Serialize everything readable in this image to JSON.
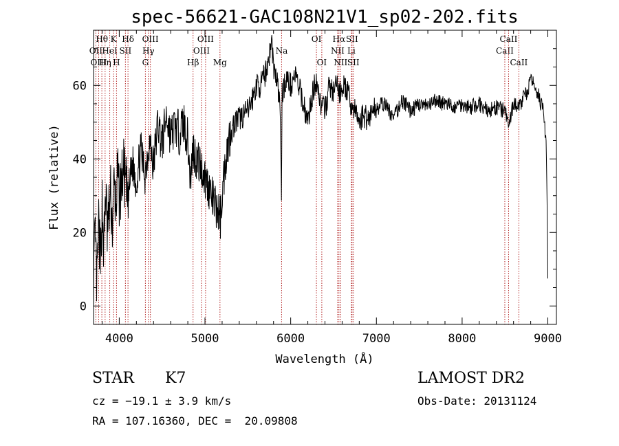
{
  "chart_data": {
    "type": "line",
    "title": "spec-56621-GAC108N21V1_sp02-202.fits",
    "xlabel": "Wavelength (Å)",
    "ylabel": "Flux (relative)",
    "xlim": [
      3700,
      9100
    ],
    "ylim": [
      -5,
      75
    ],
    "xticks": [
      4000,
      5000,
      6000,
      7000,
      8000,
      9000
    ],
    "yticks": [
      0,
      20,
      40,
      60
    ],
    "grid": false,
    "series": [
      {
        "x": [
          3700,
          3720,
          3740,
          3760,
          3780,
          3800,
          3820,
          3840,
          3860,
          3880,
          3900,
          3920,
          3940,
          3960,
          3980,
          4000,
          4050,
          4100,
          4150,
          4200,
          4250,
          4300,
          4350,
          4400,
          4450,
          4500,
          4550,
          4600,
          4650,
          4700,
          4750,
          4800,
          4830,
          4860,
          4900,
          4950,
          5000,
          5050,
          5100,
          5150,
          5180,
          5200,
          5250,
          5300,
          5350,
          5400,
          5450,
          5500,
          5550,
          5600,
          5650,
          5700,
          5750,
          5780,
          5800,
          5850,
          5880,
          5893,
          5900,
          5950,
          6000,
          6050,
          6100,
          6150,
          6200,
          6250,
          6300,
          6350,
          6400,
          6450,
          6500,
          6550,
          6563,
          6600,
          6650,
          6700,
          6750,
          6800,
          6850,
          6900,
          6950,
          7000,
          7100,
          7200,
          7300,
          7400,
          7500,
          7600,
          7700,
          7800,
          7900,
          8000,
          8100,
          8200,
          8300,
          8400,
          8500,
          8542,
          8600,
          8662,
          8700,
          8750,
          8800,
          8850,
          8900,
          8950,
          8980,
          8990,
          9000
        ],
        "y": [
          8,
          18,
          5,
          22,
          10,
          28,
          15,
          32,
          20,
          25,
          30,
          22,
          33,
          27,
          35,
          30,
          37,
          28,
          39,
          34,
          42,
          36,
          45,
          38,
          50,
          44,
          52,
          46,
          49,
          47,
          50,
          45,
          34,
          43,
          40,
          38,
          35,
          32,
          28,
          26,
          24,
          30,
          42,
          47,
          50,
          51,
          52,
          53,
          56,
          60,
          60,
          63,
          68,
          72,
          65,
          60,
          52,
          28,
          58,
          62,
          60,
          63,
          59,
          55,
          50,
          57,
          62,
          55,
          53,
          60,
          58,
          61,
          57,
          60,
          59,
          55,
          53,
          50,
          52,
          51,
          53,
          54,
          55,
          51,
          56,
          53,
          55,
          54,
          56,
          55,
          54,
          55,
          54,
          55,
          53,
          54,
          53,
          49,
          55,
          54,
          56,
          58,
          61,
          60,
          57,
          52,
          45,
          30,
          8
        ]
      }
    ],
    "lines": [
      {
        "label": "Hθ",
        "x": 3797,
        "row": 1
      },
      {
        "label": "OII",
        "x": 3727,
        "row": 2
      },
      {
        "label": "OIII",
        "x": 3760,
        "row": 3
      },
      {
        "label": "Hη",
        "x": 3835,
        "row": 3
      },
      {
        "label": "HeI",
        "x": 3889,
        "row": 2
      },
      {
        "label": "K",
        "x": 3934,
        "row": 1
      },
      {
        "label": "H",
        "x": 3968,
        "row": 3
      },
      {
        "label": "SII",
        "x": 4072,
        "row": 2
      },
      {
        "label": "Hδ",
        "x": 4102,
        "row": 1
      },
      {
        "label": "G",
        "x": 4305,
        "row": 3
      },
      {
        "label": "Hγ",
        "x": 4340,
        "row": 2
      },
      {
        "label": "OIII",
        "x": 4363,
        "row": 1
      },
      {
        "label": "Hβ",
        "x": 4861,
        "row": 3
      },
      {
        "label": "OIII",
        "x": 4959,
        "row": 2
      },
      {
        "label": "OIII",
        "x": 5007,
        "row": 1
      },
      {
        "label": "Mg",
        "x": 5175,
        "row": 3
      },
      {
        "label": "Na",
        "x": 5894,
        "row": 2
      },
      {
        "label": "OI",
        "x": 6300,
        "row": 1
      },
      {
        "label": "OI",
        "x": 6363,
        "row": 3
      },
      {
        "label": "NII",
        "x": 6548,
        "row": 2
      },
      {
        "label": "Hα",
        "x": 6563,
        "row": 1
      },
      {
        "label": "NII",
        "x": 6583,
        "row": 3
      },
      {
        "label": "Li",
        "x": 6708,
        "row": 2
      },
      {
        "label": "SII",
        "x": 6716,
        "row": 1
      },
      {
        "label": "SII",
        "x": 6731,
        "row": 3
      },
      {
        "label": "CaII",
        "x": 8498,
        "row": 2
      },
      {
        "label": "CaII",
        "x": 8542,
        "row": 1
      },
      {
        "label": "CaII",
        "x": 8662,
        "row": 3
      }
    ]
  },
  "info": {
    "class": "STAR",
    "subclass": "K7",
    "survey": "LAMOST DR2",
    "cz": "cz = −19.1 ± 3.9 km/s",
    "obs_date": "Obs-Date: 20131124",
    "radec": "RA = 107.16360, DEC =  20.09808"
  },
  "colors": {
    "spectrum": "#000000",
    "line_markers": "#b22222",
    "axes": "#000000"
  }
}
